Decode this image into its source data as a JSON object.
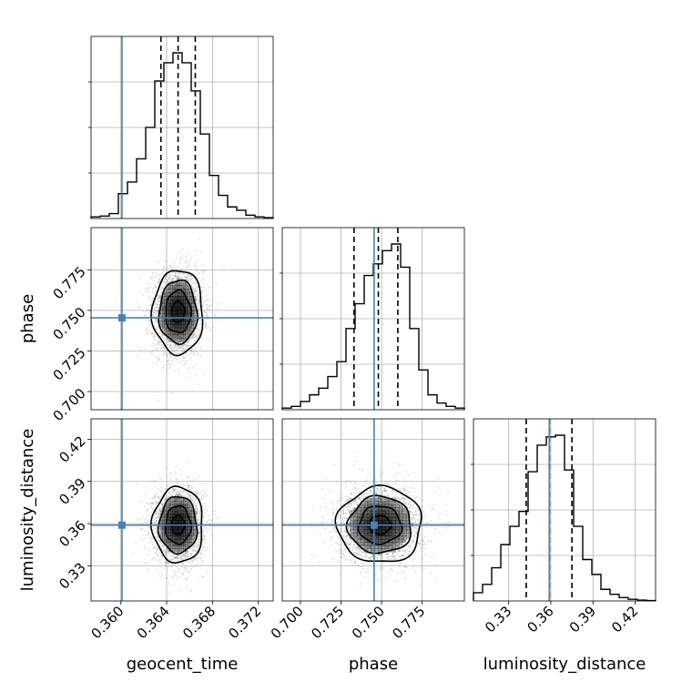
{
  "chart_data": {
    "type": "corner",
    "parameters": [
      "geocent_time",
      "phase",
      "luminosity_distance"
    ],
    "axis_labels": {
      "x": [
        "geocent_time",
        "phase",
        "luminosity_distance"
      ],
      "y": [
        "phase",
        "luminosity_distance"
      ]
    },
    "ranges": {
      "geocent_time": [
        0.3574,
        0.3733
      ],
      "phase": [
        0.6888,
        0.801
      ],
      "luminosity_distance": [
        0.305,
        0.4345
      ]
    },
    "ticks": {
      "geocent_time": [
        0.36,
        0.364,
        0.368,
        0.372
      ],
      "phase": [
        0.7,
        0.725,
        0.75,
        0.775
      ],
      "luminosity_distance": [
        0.33,
        0.36,
        0.39,
        0.42
      ]
    },
    "tick_labels": {
      "geocent_time": [
        "0.360",
        "0.364",
        "0.368",
        "0.372"
      ],
      "phase": [
        "0.700",
        "0.725",
        "0.750",
        "0.775"
      ],
      "luminosity_distance": [
        "0.33",
        "0.36",
        "0.39",
        "0.42"
      ]
    },
    "truths": {
      "geocent_time": 0.3601,
      "phase": 0.7454,
      "luminosity_distance": 0.3589
    },
    "quantiles": {
      "geocent_time": [
        0.3635,
        0.365,
        0.3665
      ],
      "phase": [
        0.733,
        0.748,
        0.76
      ],
      "luminosity_distance": [
        0.3425,
        0.359,
        0.375
      ]
    },
    "histograms": {
      "geocent_time": [
        0.01,
        0.015,
        0.03,
        0.15,
        0.22,
        0.36,
        0.55,
        0.83,
        0.94,
        1.0,
        0.94,
        0.77,
        0.51,
        0.26,
        0.14,
        0.07,
        0.05,
        0.02,
        0.01,
        0.005
      ],
      "phase": [
        0.01,
        0.02,
        0.05,
        0.09,
        0.13,
        0.2,
        0.29,
        0.49,
        0.64,
        0.81,
        0.88,
        0.96,
        1.0,
        0.86,
        0.49,
        0.24,
        0.09,
        0.04,
        0.02,
        0.01
      ],
      "luminosity_distance": [
        0.05,
        0.1,
        0.2,
        0.34,
        0.45,
        0.54,
        0.78,
        0.94,
        0.99,
        1.0,
        0.79,
        0.45,
        0.25,
        0.16,
        0.07,
        0.04,
        0.02,
        0.01,
        0.005,
        0.002
      ]
    },
    "posterior_center": {
      "geocent_time": 0.365,
      "phase": 0.749,
      "luminosity_distance": 0.359
    },
    "posterior_sigma": {
      "geocent_time": 0.0011,
      "phase": 0.013,
      "luminosity_distance": 0.0135
    },
    "contour_levels_sigma": [
      0.5,
      1.0,
      1.5,
      2.0
    ],
    "colors": {
      "truth": "#4682b4",
      "histogram": "#000000",
      "quantile": "#000000",
      "grid": "#b0b0b0",
      "density": "#000000",
      "scatter": "#7f7f7f"
    }
  }
}
